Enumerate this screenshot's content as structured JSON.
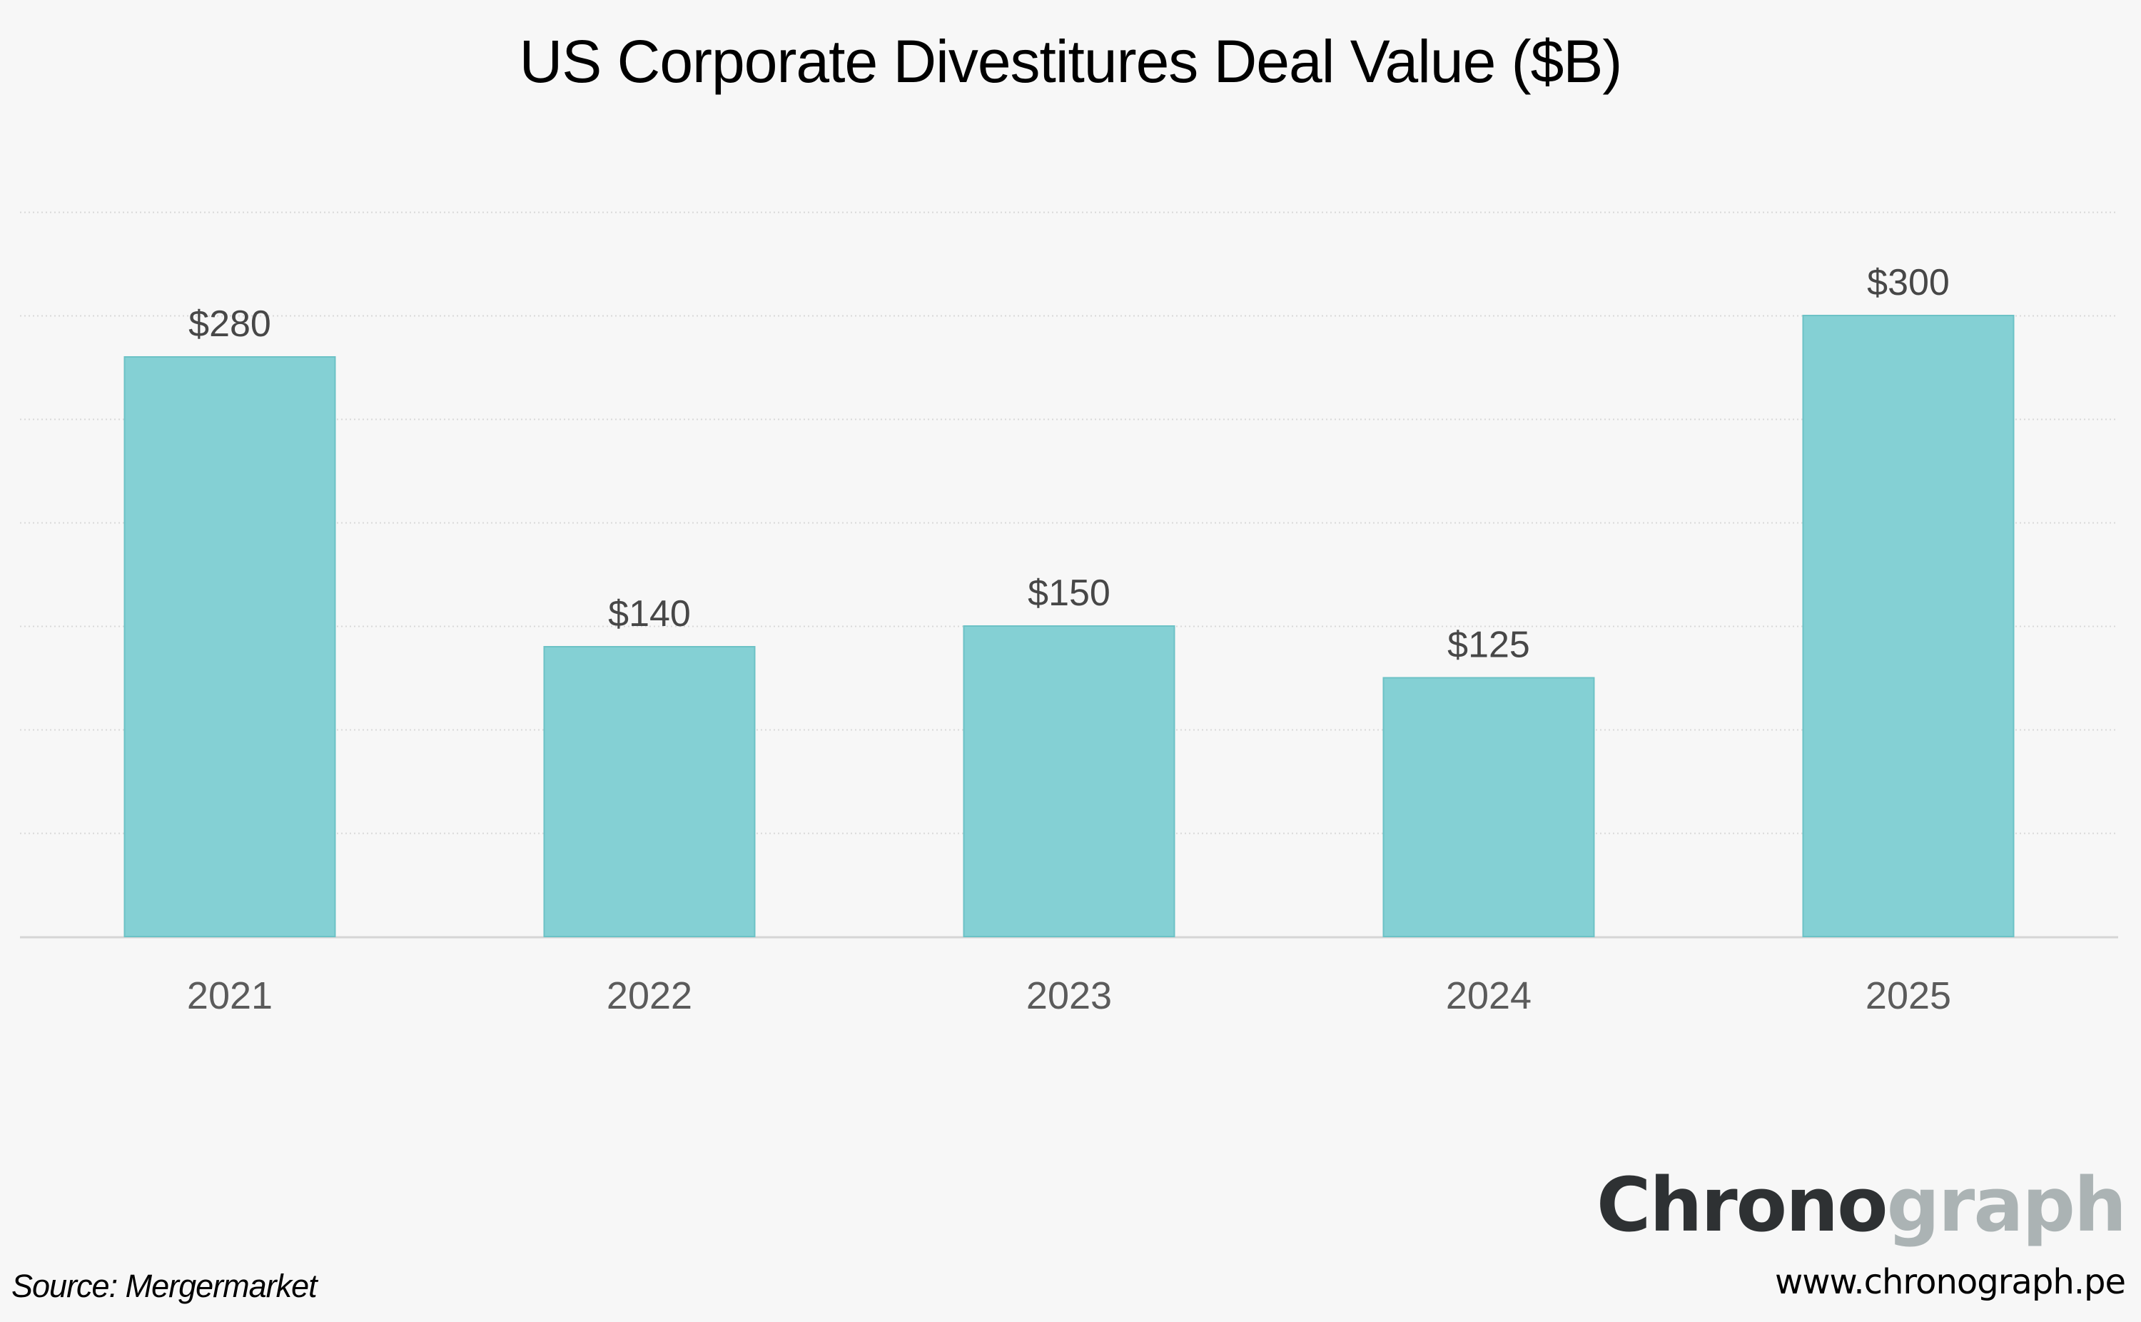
{
  "chart_data": {
    "type": "bar",
    "title": "US Corporate Divestitures Deal Value ($B)",
    "xlabel": "",
    "ylabel": "",
    "categories": [
      "2021",
      "2022",
      "2023",
      "2024",
      "2025"
    ],
    "values": [
      280,
      140,
      150,
      125,
      300
    ],
    "data_labels": [
      "$280",
      "$140",
      "$150",
      "$125",
      "$300"
    ],
    "ylim": [
      0,
      350
    ],
    "y_gridlines": [
      50,
      100,
      150,
      200,
      250,
      300,
      350
    ],
    "y_tick_labels_shown": false,
    "grid": true,
    "legend": "none",
    "bar_color": "#84d0d4",
    "bar_edge_color": "#6cc2c6"
  },
  "footer": {
    "source": "Source: Mergermarket",
    "logo_part_dark": "Chrono",
    "logo_part_light": "graph",
    "url": "www.chronograph.pe"
  }
}
